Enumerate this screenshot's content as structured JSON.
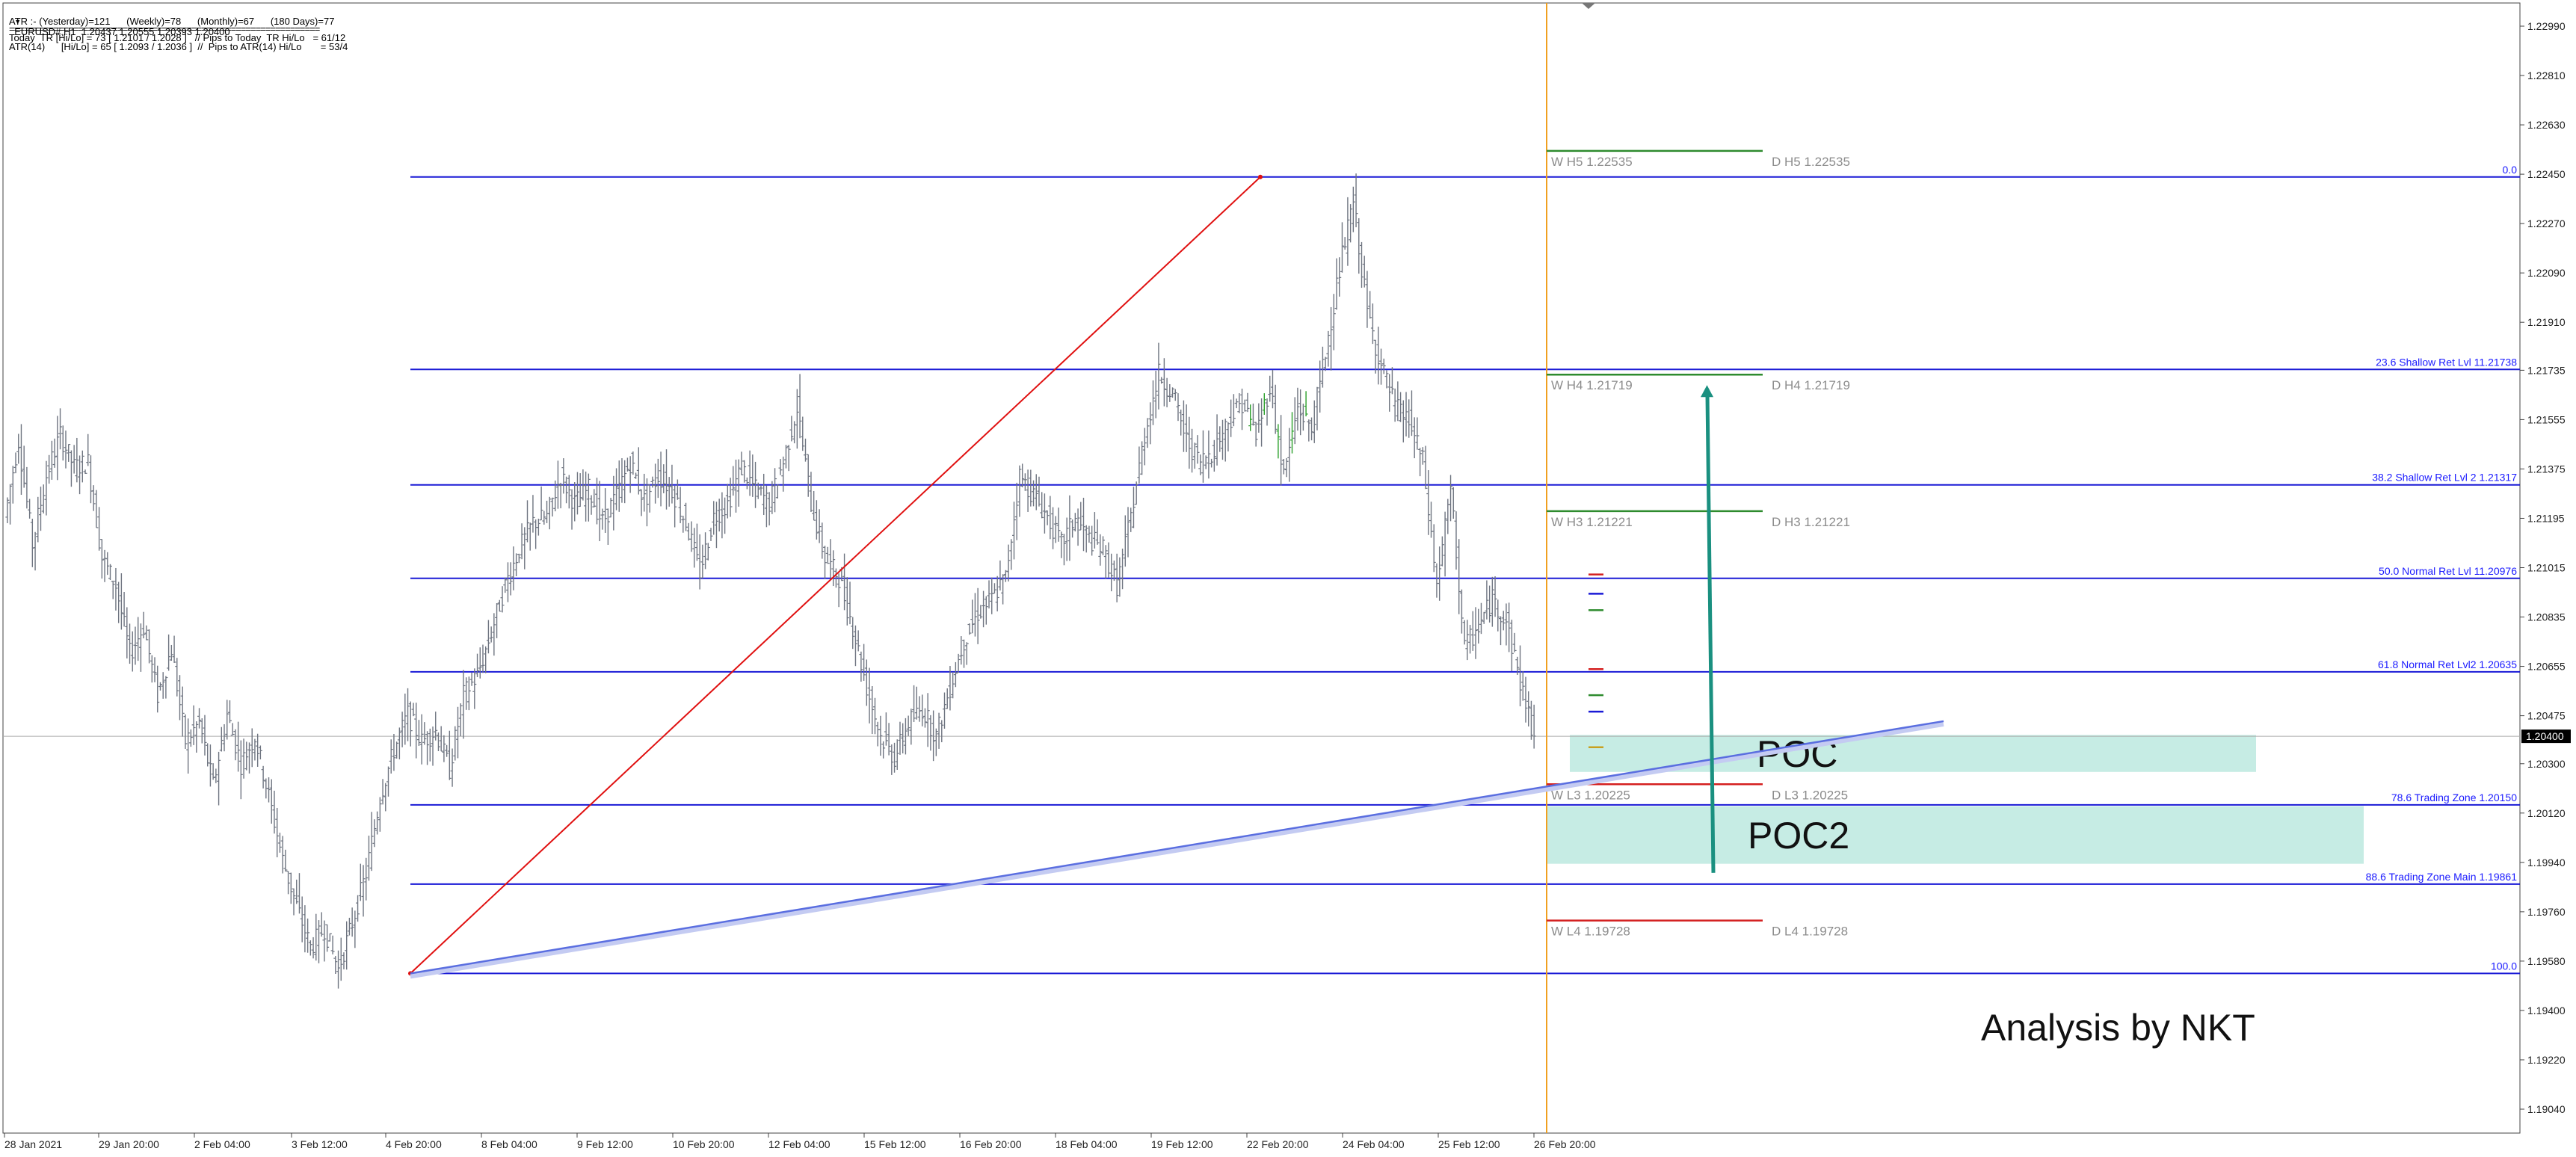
{
  "header": {
    "symbol_line": "EURUSD#,H1  1.20437 1.20555 1.20393 1.20400",
    "atr_line": "ATR :- (Yesterday)=121      (Weekly)=78      (Monthly)=67      (180 Days)=77",
    "separator": "===============================================================",
    "today_line": "Today  TR [Hi/Lo] = 73 [ 1.2101 / 1.2028 ]   // Pips to Today  TR Hi/Lo   = 61/12",
    "atr14_line": "ATR(14)      [Hi/Lo] = 65 [ 1.2093 / 1.2036 ]  //  Pips to ATR(14) Hi/Lo       = 53/4"
  },
  "chart_data": {
    "type": "candlestick",
    "symbol": "EURUSD#",
    "timeframe": "H1",
    "y_axis": {
      "ylim": [
        1.1895,
        1.231
      ],
      "ticks": [
        "1.22990",
        "1.22810",
        "1.22630",
        "1.22450",
        "1.22270",
        "1.22090",
        "1.21910",
        "1.21735",
        "1.21555",
        "1.21375",
        "1.21195",
        "1.21015",
        "1.20835",
        "1.20655",
        "1.20475",
        "1.20300",
        "1.20120",
        "1.19940",
        "1.19760",
        "1.19580",
        "1.19400",
        "1.19220",
        "1.19040"
      ],
      "current_price": "1.20400"
    },
    "x_axis": {
      "ticks": [
        "28 Jan 2021",
        "29 Jan 20:00",
        "2 Feb 04:00",
        "3 Feb 12:00",
        "4 Feb 20:00",
        "8 Feb 04:00",
        "9 Feb 12:00",
        "10 Feb 20:00",
        "12 Feb 04:00",
        "15 Feb 12:00",
        "16 Feb 20:00",
        "18 Feb 04:00",
        "19 Feb 12:00",
        "22 Feb 20:00",
        "24 Feb 04:00",
        "25 Feb 12:00",
        "26 Feb 20:00"
      ]
    },
    "price_path": [
      [
        0,
        1.212
      ],
      [
        1,
        1.2148
      ],
      [
        2,
        1.211
      ],
      [
        3,
        1.2135
      ],
      [
        4,
        1.215
      ],
      [
        5,
        1.2138
      ],
      [
        6,
        1.214
      ],
      [
        7,
        1.2105
      ],
      [
        8,
        1.2095
      ],
      [
        9,
        1.207
      ],
      [
        10,
        1.208
      ],
      [
        11,
        1.2055
      ],
      [
        12,
        1.2072
      ],
      [
        13,
        1.2038
      ],
      [
        14,
        1.2045
      ],
      [
        15,
        1.2022
      ],
      [
        16,
        1.2048
      ],
      [
        17,
        1.203
      ],
      [
        18,
        1.204
      ],
      [
        19,
        1.2018
      ],
      [
        20,
        1.1995
      ],
      [
        21,
        1.1978
      ],
      [
        22,
        1.1963
      ],
      [
        23,
        1.197
      ],
      [
        24,
        1.1955
      ],
      [
        25,
        1.1972
      ],
      [
        26,
        1.199
      ],
      [
        27,
        1.2018
      ],
      [
        28,
        1.2035
      ],
      [
        29,
        1.2048
      ],
      [
        30,
        1.2038
      ],
      [
        31,
        1.2042
      ],
      [
        32,
        1.2028
      ],
      [
        33,
        1.2055
      ],
      [
        34,
        1.2062
      ],
      [
        35,
        1.2078
      ],
      [
        36,
        1.2095
      ],
      [
        37,
        1.2108
      ],
      [
        38,
        1.2118
      ],
      [
        39,
        1.212
      ],
      [
        40,
        1.2135
      ],
      [
        41,
        1.2125
      ],
      [
        42,
        1.213
      ],
      [
        43,
        1.2118
      ],
      [
        44,
        1.2128
      ],
      [
        45,
        1.214
      ],
      [
        46,
        1.2126
      ],
      [
        47,
        1.2135
      ],
      [
        48,
        1.213
      ],
      [
        49,
        1.2118
      ],
      [
        50,
        1.21
      ],
      [
        51,
        1.212
      ],
      [
        52,
        1.2125
      ],
      [
        53,
        1.2138
      ],
      [
        54,
        1.213
      ],
      [
        55,
        1.2125
      ],
      [
        56,
        1.214
      ],
      [
        57,
        1.216
      ],
      [
        58,
        1.2125
      ],
      [
        59,
        1.2105
      ],
      [
        60,
        1.2098
      ],
      [
        61,
        1.208
      ],
      [
        62,
        1.2058
      ],
      [
        63,
        1.204
      ],
      [
        64,
        1.2032
      ],
      [
        65,
        1.2045
      ],
      [
        66,
        1.205
      ],
      [
        67,
        1.204
      ],
      [
        68,
        1.2058
      ],
      [
        69,
        1.2075
      ],
      [
        70,
        1.2085
      ],
      [
        71,
        1.209
      ],
      [
        72,
        1.2098
      ],
      [
        73,
        1.2135
      ],
      [
        74,
        1.2128
      ],
      [
        75,
        1.212
      ],
      [
        76,
        1.211
      ],
      [
        77,
        1.212
      ],
      [
        78,
        1.2112
      ],
      [
        79,
        1.2108
      ],
      [
        80,
        1.2095
      ],
      [
        81,
        1.212
      ],
      [
        82,
        1.215
      ],
      [
        83,
        1.2172
      ],
      [
        84,
        1.2165
      ],
      [
        85,
        1.2148
      ],
      [
        86,
        1.214
      ],
      [
        87,
        1.2145
      ],
      [
        88,
        1.2155
      ],
      [
        89,
        1.2162
      ],
      [
        90,
        1.215
      ],
      [
        91,
        1.2168
      ],
      [
        92,
        1.2135
      ],
      [
        93,
        1.216
      ],
      [
        94,
        1.2152
      ],
      [
        95,
        1.218
      ],
      [
        96,
        1.221
      ],
      [
        97,
        1.2235
      ],
      [
        98,
        1.2195
      ],
      [
        99,
        1.2175
      ],
      [
        100,
        1.216
      ],
      [
        101,
        1.2155
      ],
      [
        102,
        1.214
      ],
      [
        103,
        1.2095
      ],
      [
        104,
        1.213
      ],
      [
        105,
        1.2072
      ],
      [
        106,
        1.208
      ],
      [
        107,
        1.209
      ],
      [
        108,
        1.2082
      ],
      [
        109,
        1.206
      ],
      [
        110,
        1.204
      ]
    ],
    "fib_levels": [
      {
        "level": "0.0",
        "price": 1.2244,
        "label": "0.0"
      },
      {
        "level": "23.6",
        "price": 1.21738,
        "label": "23.6 Shallow Ret Lvl 11.21738"
      },
      {
        "level": "38.2",
        "price": 1.21317,
        "label": "38.2 Shallow Ret Lvl 2 1.21317"
      },
      {
        "level": "50.0",
        "price": 1.20976,
        "label": "50.0 Normal Ret Lvl 11.20976"
      },
      {
        "level": "61.8",
        "price": 1.20635,
        "label": "61.8 Normal Ret Lvl2 1.20635"
      },
      {
        "level": "78.6",
        "price": 1.2015,
        "label": "78.6 Trading Zone 1.20150"
      },
      {
        "level": "88.6",
        "price": 1.19861,
        "label": "88.6 Trading Zone Main 1.19861"
      },
      {
        "level": "100.0",
        "price": 1.19535,
        "label": "100.0"
      }
    ],
    "pivots": [
      {
        "price": 1.22535,
        "weekly": "W  H5 1.22535",
        "daily": "D  H5 1.22535",
        "color": "#2e8b2e"
      },
      {
        "price": 1.21719,
        "weekly": "W  H4 1.21719",
        "daily": "D  H4 1.21719",
        "color": "#2e8b2e"
      },
      {
        "price": 1.21221,
        "weekly": "W  H3 1.21221",
        "daily": "D  H3 1.21221",
        "color": "#2e8b2e"
      },
      {
        "price": 1.20225,
        "weekly": "W  L3 1.20225",
        "daily": "D  L3 1.20225",
        "color": "#d42020"
      },
      {
        "price": 1.19728,
        "weekly": "W  L4 1.19728",
        "daily": "D  L4 1.19728",
        "color": "#d42020"
      }
    ],
    "zones": [
      {
        "name": "POC",
        "top": 1.20405,
        "bottom": 1.2027
      },
      {
        "name": "POC2",
        "top": 1.20145,
        "bottom": 1.19935
      }
    ],
    "trendlines": [
      {
        "name": "red-rising-line",
        "color": "#e01010",
        "from_price": 1.19535,
        "to_price": 1.2244
      },
      {
        "name": "blue-support-line",
        "color": "#5a6ee0",
        "from_price": 1.19535,
        "to_price": 1.20455
      }
    ],
    "arrow": {
      "color": "#1a9080",
      "from_price": 1.2,
      "to_price": 1.21719
    },
    "current_session_line_color": "#f0a020"
  },
  "credit": "Analysis by NKT"
}
